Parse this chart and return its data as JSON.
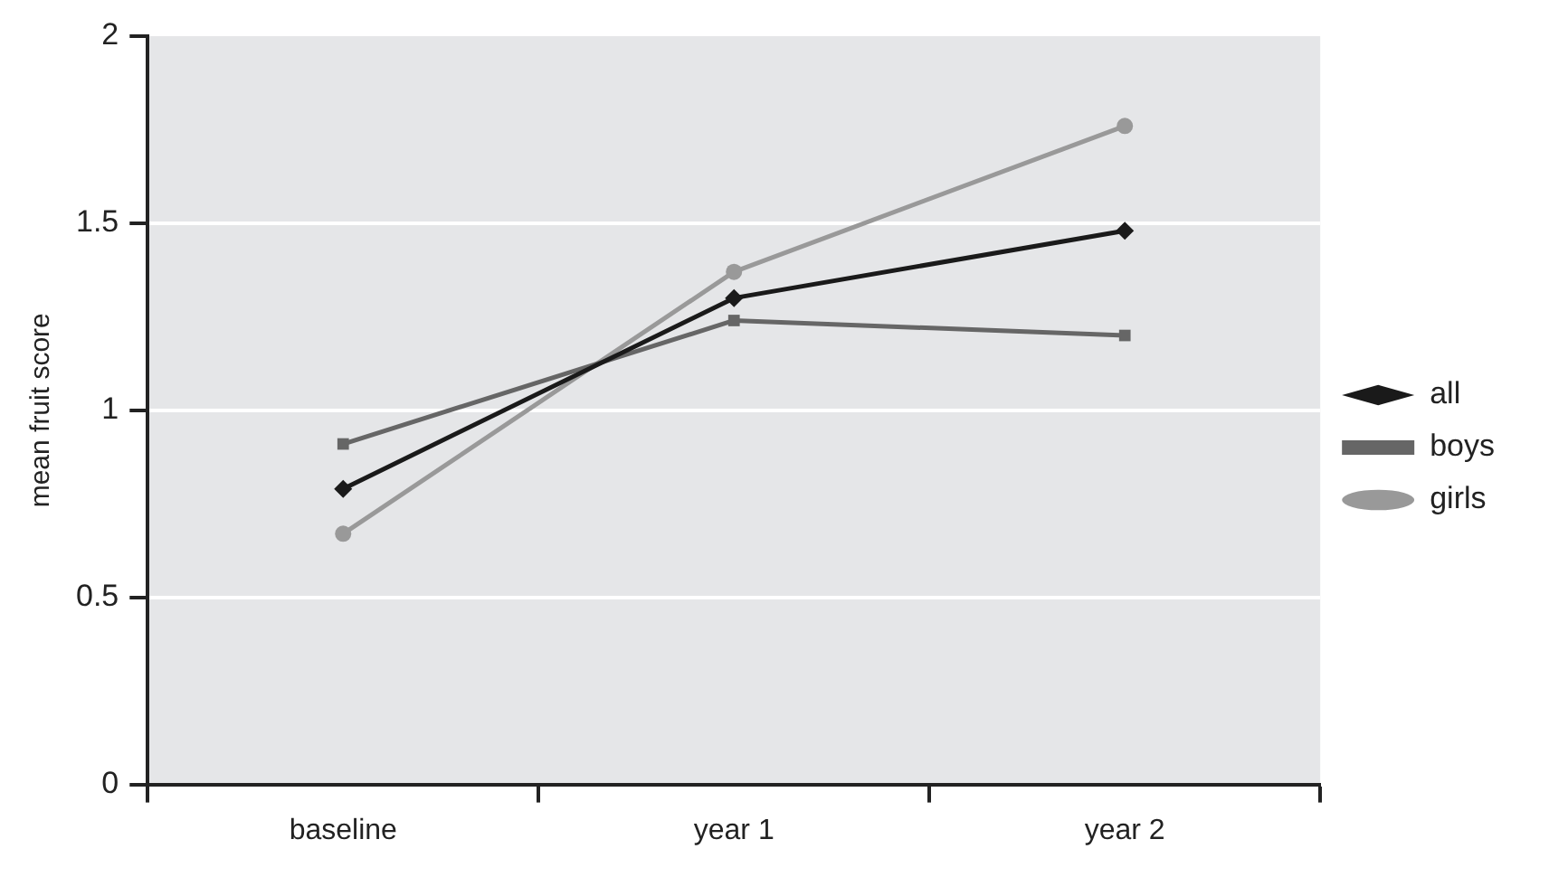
{
  "chart_data": {
    "type": "line",
    "ylabel": "mean fruit score",
    "categories": [
      "baseline",
      "year 1",
      "year 2"
    ],
    "series": [
      {
        "name": "all",
        "color": "#1a1a1a",
        "marker": "diamond",
        "values": [
          0.79,
          1.3,
          1.48
        ]
      },
      {
        "name": "boys",
        "color": "#666666",
        "marker": "square",
        "values": [
          0.91,
          1.24,
          1.2
        ]
      },
      {
        "name": "girls",
        "color": "#999999",
        "marker": "circle",
        "values": [
          0.67,
          1.37,
          1.76
        ]
      }
    ],
    "ylim": [
      0,
      2
    ],
    "yticks": [
      0,
      0.5,
      1,
      1.5,
      2
    ],
    "grid": "y",
    "legend": "right",
    "line_style": "solid"
  }
}
